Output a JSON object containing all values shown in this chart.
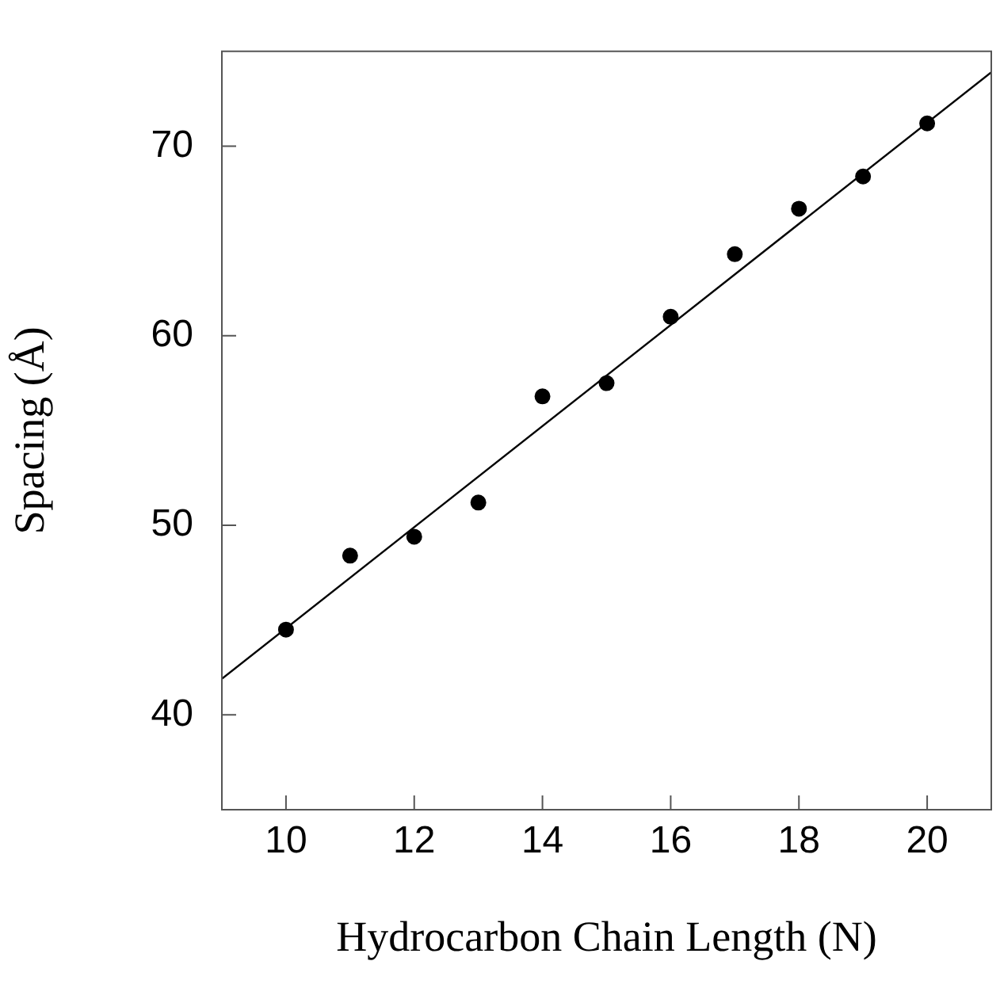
{
  "chart_data": {
    "type": "scatter",
    "xlabel": "Hydrocarbon Chain Length (N)",
    "ylabel": "Spacing (Å)",
    "x": [
      10,
      11,
      12,
      13,
      14,
      15,
      16,
      17,
      18,
      19,
      20
    ],
    "series": [
      {
        "color": "#000000",
        "marker": "circle",
        "values": [
          44.5,
          48.4,
          49.4,
          51.2,
          56.8,
          57.5,
          61.0,
          64.3,
          66.7,
          68.4,
          71.2
        ]
      },
      {
        "type": "line",
        "color": "#000000",
        "marker": "none",
        "x": [
          9,
          21
        ],
        "values": [
          41.9,
          73.9
        ]
      }
    ],
    "xlim": [
      9,
      21
    ],
    "xticks": [
      10,
      12,
      14,
      16,
      18,
      20
    ],
    "ylim": [
      35,
      75
    ],
    "yticks": [
      40,
      50,
      60,
      70
    ],
    "grid": false,
    "legend": false
  }
}
